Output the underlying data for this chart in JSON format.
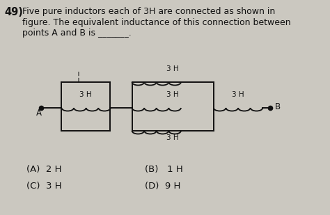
{
  "title_num": "49)",
  "question_text_lines": [
    "Five pure inductors each of 3H are connected as shown in",
    "figure. The equivalent inductance of this connection between",
    "points A and B is _______."
  ],
  "options": [
    [
      "(A)  2 H",
      "(B)   1 H"
    ],
    [
      "(C)  3 H",
      "(D)  9 H"
    ]
  ],
  "bg_color": "#cbc8c0",
  "text_color": "#111111",
  "inductor_color": "#111111",
  "line_color": "#111111",
  "circuit_bg": "#d8d5ce"
}
